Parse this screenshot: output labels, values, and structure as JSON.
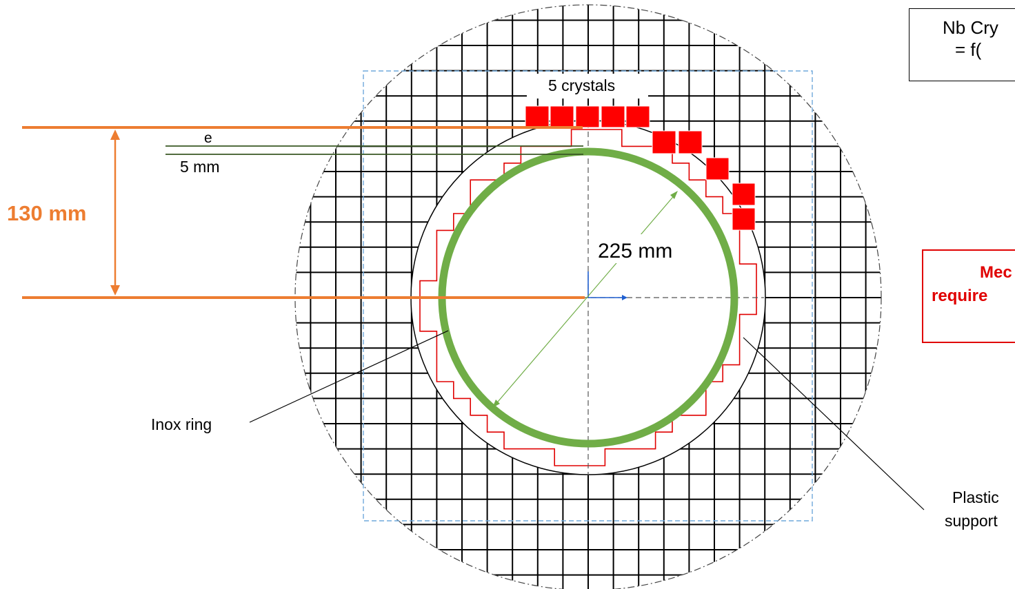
{
  "labels": {
    "height": "130 mm",
    "e": "e",
    "thickness": "5 mm",
    "crystals": "5 crystals",
    "diameter": "225 mm",
    "inox_ring": "Inox ring",
    "plastic_line1": "Plastic",
    "plastic_line2": "support"
  },
  "formula_box": {
    "line1": "Nb Cry",
    "line2": "= f("
  },
  "requirement_box": {
    "line1": "Mec",
    "line2": "require"
  },
  "colors": {
    "orange": "#ed7d31",
    "green": "#70ad47",
    "dark_green": "#385723",
    "red": "#ff0000",
    "blue_dashed": "#6fa8dc",
    "grid": "#000000"
  }
}
